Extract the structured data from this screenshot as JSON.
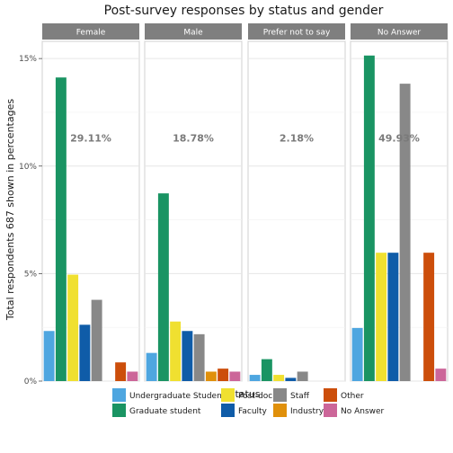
{
  "chart_data": {
    "type": "bar",
    "title": "Post-survey responses by status and gender",
    "xlabel": "Status",
    "ylabel": "Total respondents 687 shown in percentages",
    "ylim": [
      0,
      15.8
    ],
    "y_ticks": [
      0,
      5,
      10,
      15
    ],
    "y_tick_labels": [
      "0%",
      "5%",
      "10%",
      "15%"
    ],
    "grid": true,
    "legend_position": "bottom",
    "categories": [
      "Undergraduate Student",
      "Graduate student",
      "Post-doc",
      "Faculty",
      "Staff",
      "Industry",
      "Other",
      "No Answer"
    ],
    "colors": [
      "#4ea6e0",
      "#1a9463",
      "#f0e030",
      "#0f5ca8",
      "#888888",
      "#e0900b",
      "#cc4e0b",
      "#cc6699"
    ],
    "facets": [
      {
        "name": "Female",
        "total_label": "29.11%",
        "values": [
          2.33,
          14.12,
          4.95,
          2.62,
          3.78,
          0,
          0.87,
          0.44
        ]
      },
      {
        "name": "Male",
        "total_label": "18.78%",
        "values": [
          1.31,
          8.73,
          2.77,
          2.33,
          2.18,
          0.44,
          0.58,
          0.44
        ]
      },
      {
        "name": "Prefer not to say",
        "total_label": "2.18%",
        "values": [
          0.29,
          1.02,
          0.29,
          0.15,
          0.44,
          0,
          0,
          0
        ]
      },
      {
        "name": "No Answer",
        "total_label": "49.93%",
        "values": [
          2.47,
          15.14,
          5.97,
          5.97,
          13.83,
          0,
          5.97,
          0.58
        ]
      }
    ]
  }
}
